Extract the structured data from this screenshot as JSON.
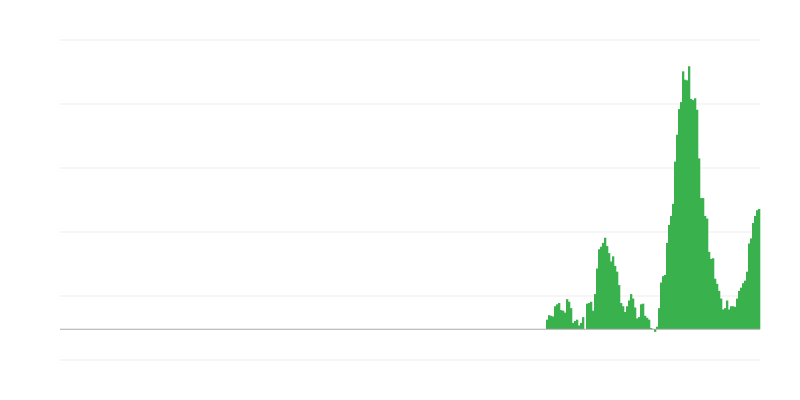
{
  "chart_data": {
    "type": "bar",
    "title": "",
    "xlabel": "",
    "ylabel": "",
    "ylim": [
      -0.48,
      4.52
    ],
    "grid": true,
    "legend": "none",
    "colors": {
      "bar": "#39b14c",
      "grid": "#eeeeee",
      "baseline": "#aaaaaa"
    },
    "values": [
      0.15,
      0.22,
      0.21,
      0.2,
      0.36,
      0.39,
      0.41,
      0.3,
      0.29,
      0.26,
      0.47,
      0.43,
      0.33,
      0.1,
      0.13,
      0.15,
      0.06,
      0.1,
      0.19,
      0,
      0.4,
      0.41,
      0.43,
      0.29,
      0.55,
      0.95,
      1.25,
      1.29,
      1.35,
      1.43,
      1.3,
      1.19,
      1.06,
      1.14,
      0.99,
      0.9,
      0.69,
      0.41,
      0.36,
      0.27,
      0.36,
      0.45,
      0.55,
      0.48,
      0.34,
      0.17,
      0.19,
      0.39,
      0.4,
      0.21,
      0.18,
      0.15,
      0.02,
      0,
      -0.04,
      0.04,
      0.33,
      0.73,
      0.83,
      0.85,
      1.35,
      1.63,
      1.77,
      1.96,
      2.62,
      3.04,
      3.44,
      3.55,
      4.03,
      3.9,
      3.89,
      4.11,
      3.6,
      3.58,
      3.61,
      3.43,
      2.67,
      2.05,
      2.05,
      1.77,
      1.73,
      1.21,
      1.1,
      1.11,
      0.79,
      0.71,
      0.6,
      0.48,
      0.31,
      0.33,
      0.45,
      0.31,
      0.36,
      0.36,
      0.35,
      0.48,
      0.6,
      0.65,
      0.72,
      0.76,
      0.9,
      1.34,
      1.42,
      1.66,
      1.77,
      1.86,
      1.88
    ]
  }
}
